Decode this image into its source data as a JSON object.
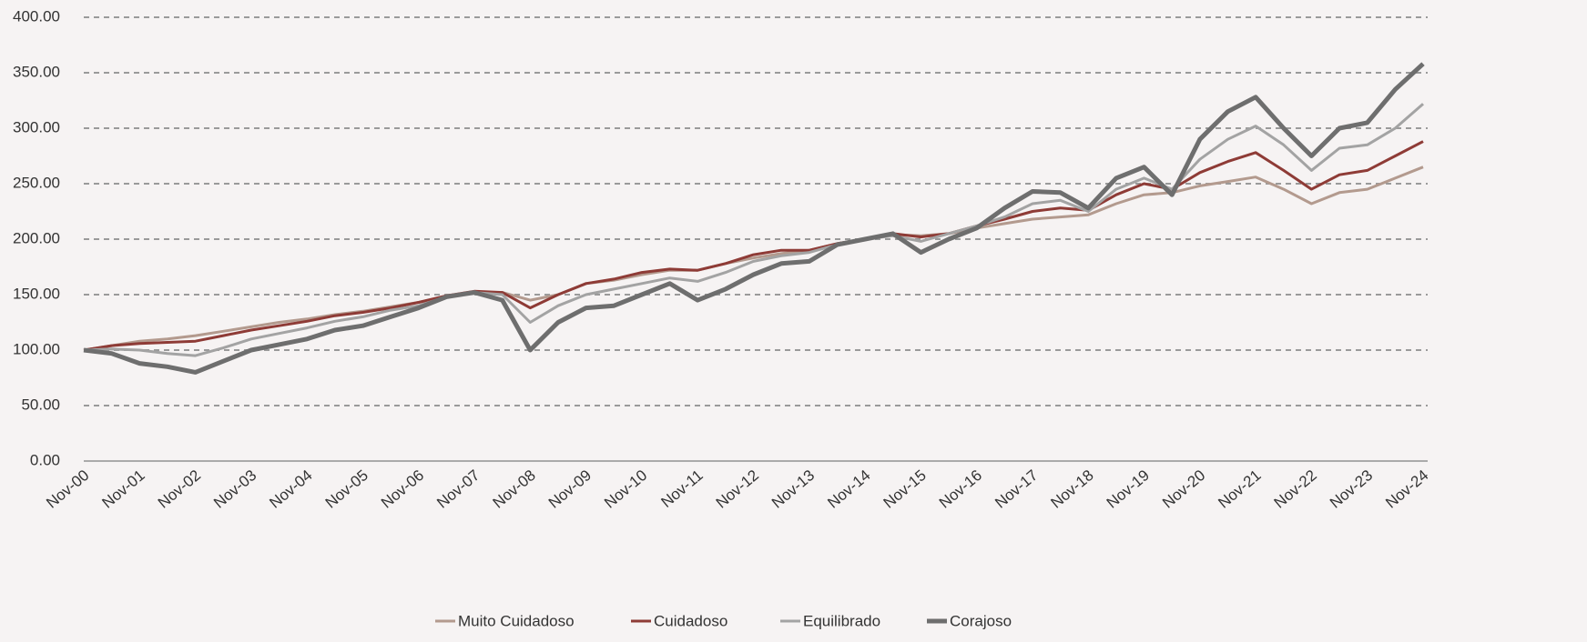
{
  "chart_data": {
    "type": "line",
    "categories": [
      "Nov-00",
      null,
      "Nov-01",
      null,
      "Nov-02",
      null,
      "Nov-03",
      null,
      "Nov-04",
      null,
      "Nov-05",
      null,
      "Nov-06",
      null,
      "Nov-07",
      null,
      "Nov-08",
      null,
      "Nov-09",
      null,
      "Nov-10",
      null,
      "Nov-11",
      null,
      "Nov-12",
      null,
      "Nov-13",
      null,
      "Nov-14",
      null,
      "Nov-15",
      null,
      "Nov-16",
      null,
      "Nov-17",
      null,
      "Nov-18",
      null,
      "Nov-19",
      null,
      "Nov-20",
      null,
      "Nov-21",
      null,
      "Nov-22",
      null,
      "Nov-23",
      null,
      "Nov-24"
    ],
    "series": [
      {
        "name": "Muito Cuidadoso",
        "color": "#b39a8e",
        "values": [
          100,
          104,
          108,
          110,
          113,
          117,
          121,
          125,
          128,
          132,
          135,
          139,
          143,
          148,
          152,
          152,
          145,
          150,
          160,
          163,
          168,
          172,
          172,
          178,
          183,
          187,
          190,
          196,
          200,
          204,
          203,
          205,
          210,
          214,
          218,
          220,
          222,
          232,
          240,
          242,
          248,
          252,
          256,
          245,
          232,
          242,
          245,
          255,
          265
        ]
      },
      {
        "name": "Cuidadoso",
        "color": "#8e3b36",
        "values": [
          100,
          104,
          106,
          107,
          108,
          113,
          118,
          122,
          126,
          131,
          134,
          138,
          143,
          149,
          153,
          152,
          138,
          150,
          160,
          164,
          170,
          173,
          172,
          178,
          186,
          190,
          190,
          196,
          200,
          205,
          202,
          205,
          212,
          218,
          225,
          228,
          226,
          240,
          250,
          245,
          260,
          270,
          278,
          262,
          245,
          258,
          262,
          275,
          288
        ]
      },
      {
        "name": "Equilibrado",
        "color": "#a3a3a3",
        "values": [
          100,
          101,
          100,
          97,
          95,
          102,
          110,
          115,
          120,
          126,
          130,
          136,
          140,
          148,
          152,
          150,
          125,
          140,
          150,
          155,
          160,
          165,
          162,
          170,
          180,
          185,
          188,
          195,
          200,
          203,
          198,
          205,
          212,
          220,
          232,
          235,
          225,
          245,
          255,
          245,
          272,
          290,
          302,
          285,
          262,
          282,
          285,
          300,
          322
        ]
      },
      {
        "name": "Corajoso",
        "color": "#6e6e6e",
        "values": [
          100,
          97,
          88,
          85,
          80,
          90,
          100,
          105,
          110,
          118,
          122,
          130,
          138,
          148,
          152,
          145,
          100,
          125,
          138,
          140,
          150,
          160,
          145,
          155,
          168,
          178,
          180,
          195,
          200,
          205,
          188,
          200,
          210,
          228,
          243,
          242,
          228,
          255,
          265,
          240,
          290,
          315,
          328,
          300,
          275,
          300,
          305,
          335,
          358
        ]
      }
    ],
    "ylim": [
      0,
      400
    ],
    "yticks": [
      {
        "value": 0,
        "label": "0.00"
      },
      {
        "value": 50,
        "label": "50.00"
      },
      {
        "value": 100,
        "label": "100.00"
      },
      {
        "value": 150,
        "label": "150.00"
      },
      {
        "value": 200,
        "label": "200.00"
      },
      {
        "value": 250,
        "label": "250.00"
      },
      {
        "value": 300,
        "label": "300.00"
      },
      {
        "value": 350,
        "label": "350.00"
      },
      {
        "value": 400,
        "label": "400.00"
      }
    ],
    "grid": true,
    "legend": "bottom"
  }
}
